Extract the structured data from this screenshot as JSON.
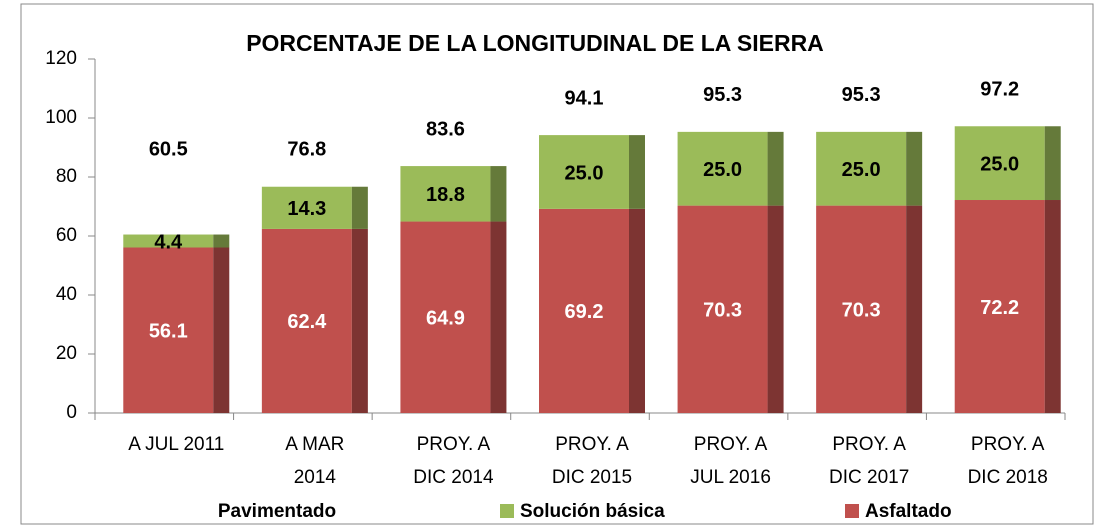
{
  "chart_data": {
    "type": "stacked_bar",
    "title": "PORCENTAJE DE LA LONGITUDINAL DE LA SIERRA",
    "categories": [
      [
        "A JUL 2011"
      ],
      [
        "A MAR",
        "2014"
      ],
      [
        "PROY. A",
        "DIC 2014"
      ],
      [
        "PROY. A",
        "DIC 2015"
      ],
      [
        "PROY. A",
        "JUL 2016"
      ],
      [
        "PROY. A",
        "DIC 2017"
      ],
      [
        "PROY. A",
        "DIC 2018"
      ]
    ],
    "series": [
      {
        "name": "Asfaltado",
        "color": "#c0504d",
        "values": [
          56.1,
          62.4,
          64.9,
          69.2,
          70.3,
          70.3,
          72.2
        ]
      },
      {
        "name": "Solución básica",
        "color": "#9bbb59",
        "values": [
          4.4,
          14.3,
          18.8,
          25.0,
          25.0,
          25.0,
          25.0
        ],
        "value_labels": [
          "4.4",
          "14.3",
          "18.8",
          "25.0",
          "25.0",
          "25.0",
          "25.0"
        ]
      }
    ],
    "total_label": "Pavimentado",
    "totals": [
      60.5,
      76.8,
      83.6,
      94.1,
      95.3,
      95.3,
      97.2
    ],
    "ylim": [
      0,
      120
    ],
    "yticks": [
      0,
      20,
      40,
      60,
      80,
      100,
      120
    ],
    "grid": false,
    "legend": "bottom"
  }
}
